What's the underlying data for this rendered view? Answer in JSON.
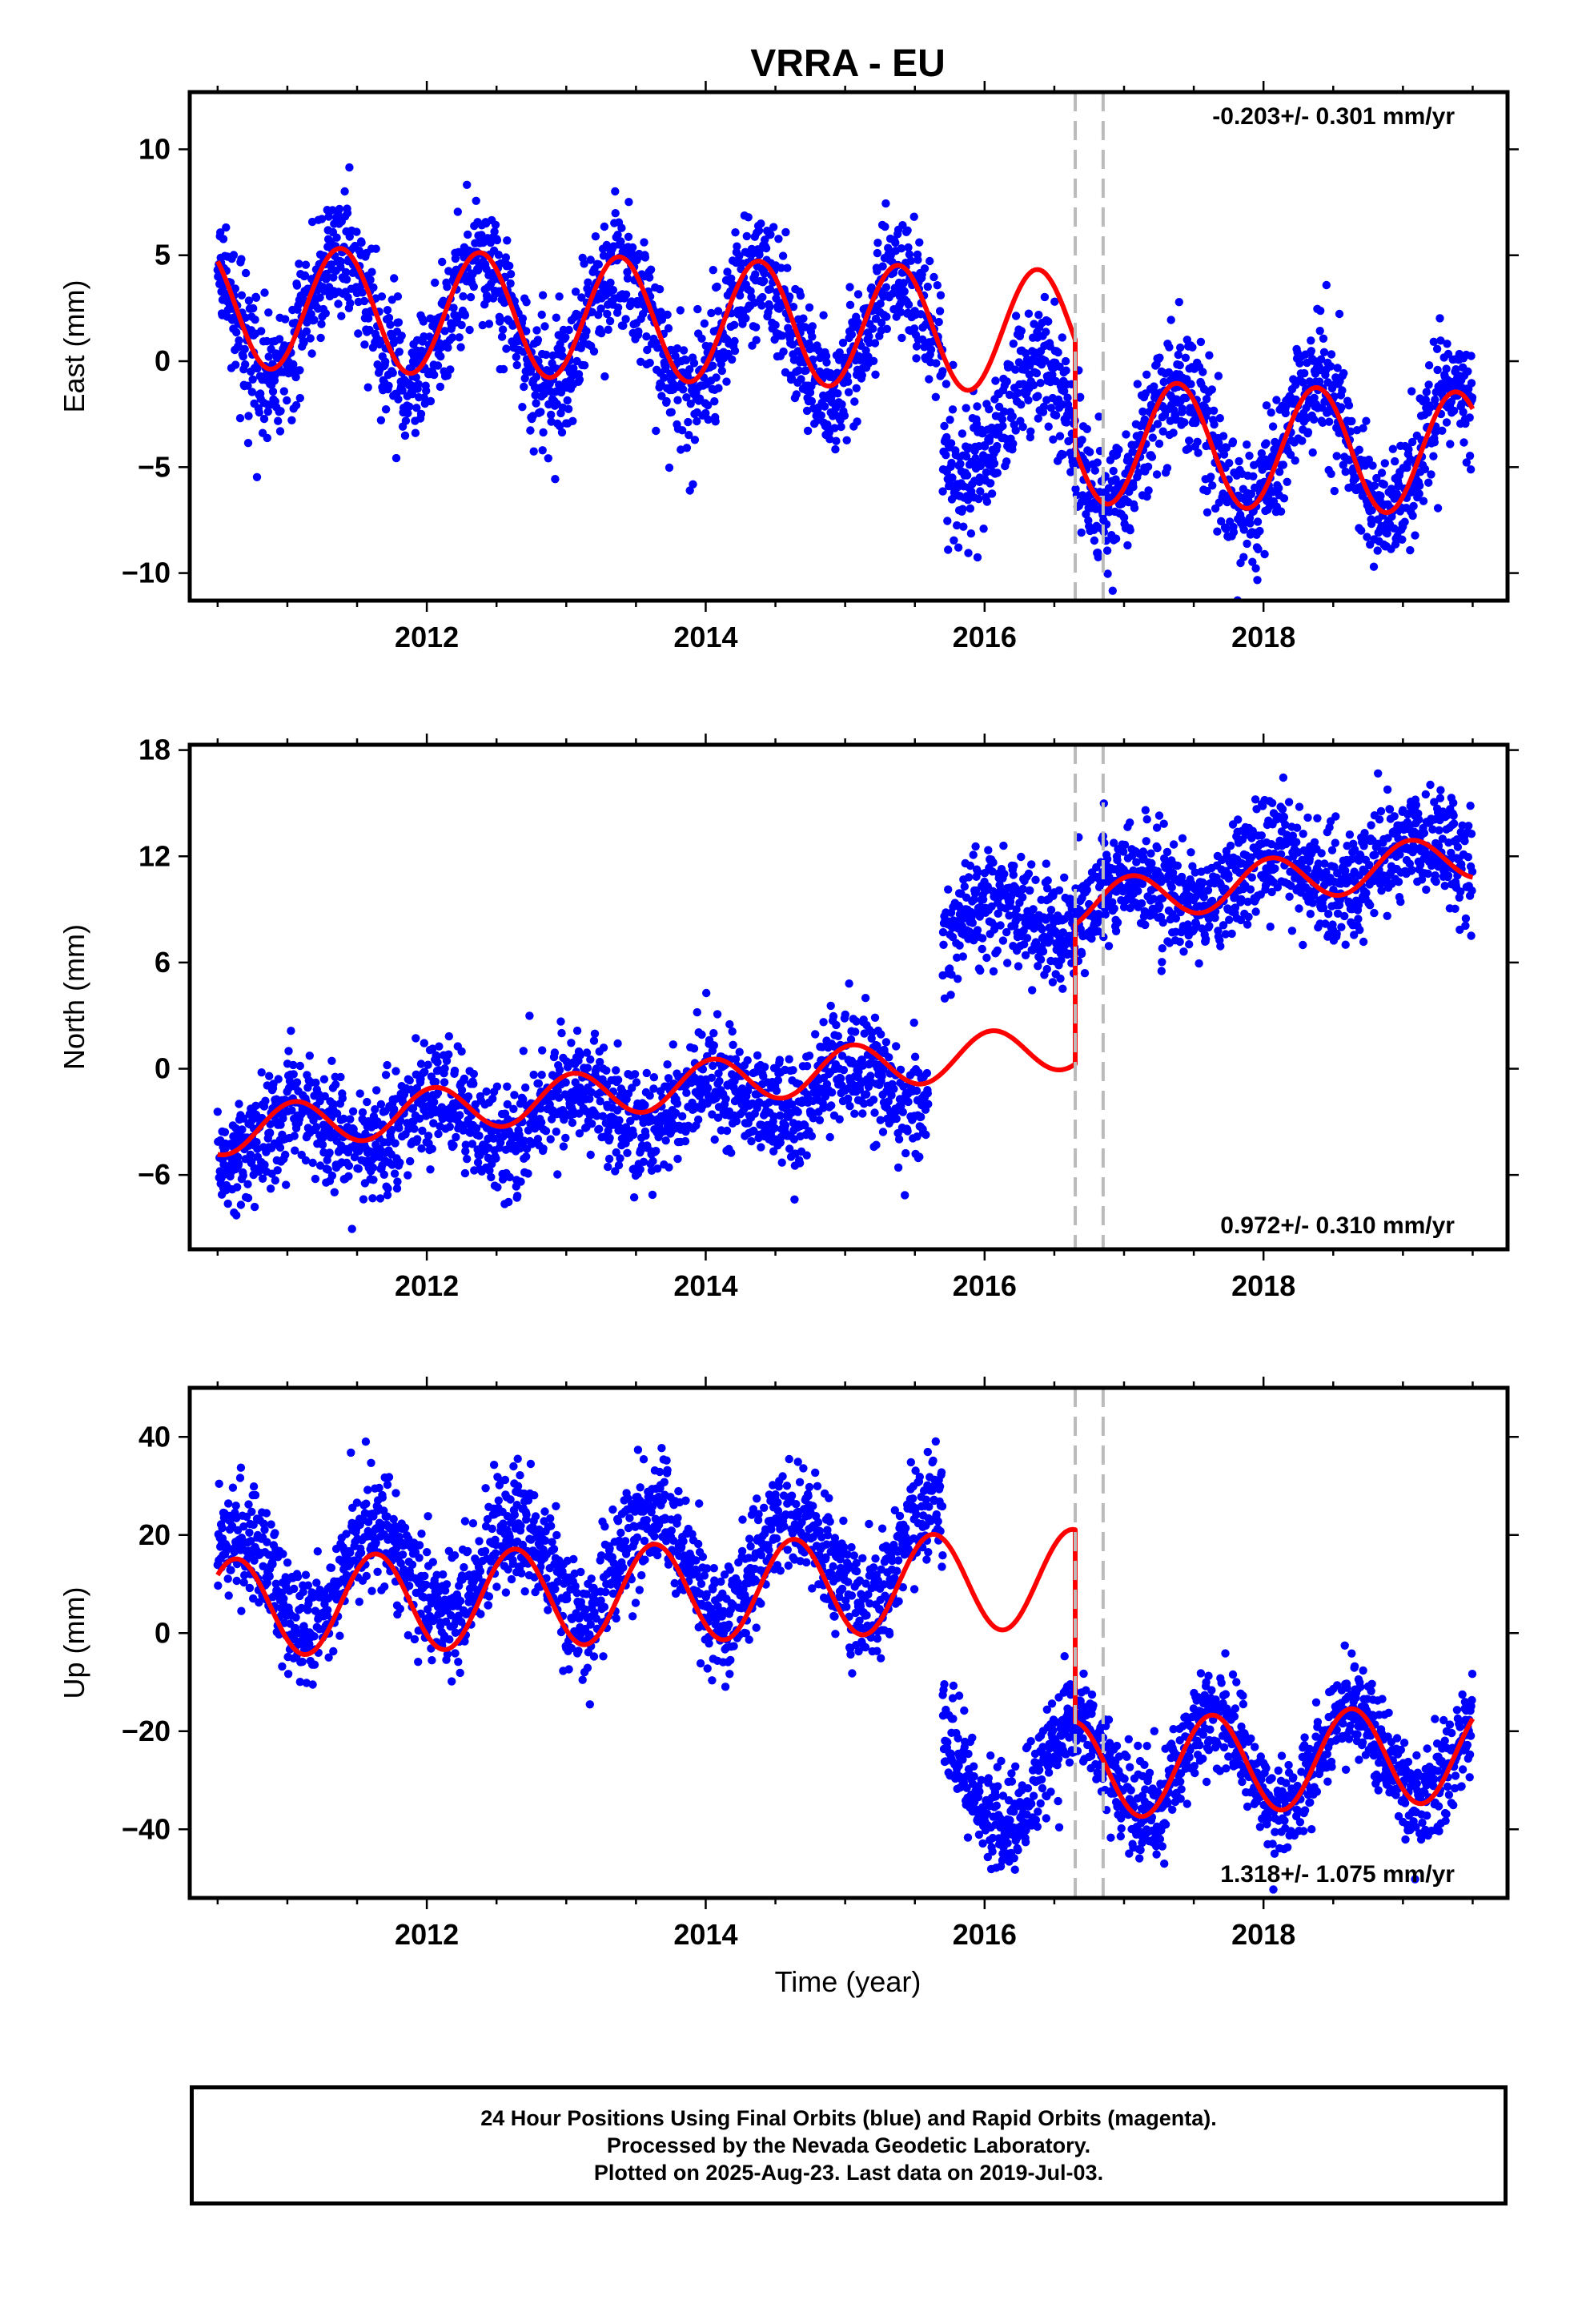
{
  "figure": {
    "title": "VRRA - EU",
    "xlabel": "Time (year)",
    "footer": [
      "24 Hour Positions Using Final Orbits (blue) and Rapid Orbits (magenta).",
      "Processed by the Nevada Geodetic Laboratory.",
      "Plotted on 2025-Aug-23. Last data on 2019-Jul-03."
    ],
    "colors": {
      "data": "#0000ff",
      "model": "#ff0000",
      "events": "#bbbbbb",
      "frame": "#000000"
    }
  },
  "chart_data": [
    {
      "type": "scatter",
      "name": "East",
      "ylabel": "East (mm)",
      "rate_label": "-0.203+/- 0.301 mm/yr",
      "rate_position": "top-right",
      "xlim": [
        2010.3,
        2019.75
      ],
      "ylim": [
        -11.3,
        12.7
      ],
      "x_ticks": [
        2012,
        2014,
        2016,
        2018
      ],
      "y_ticks": [
        10,
        5,
        0,
        -5,
        -10
      ],
      "y_tick_labels": [
        "10",
        "5",
        "0",
        "−5",
        "−10"
      ],
      "event_lines": [
        2016.65,
        2016.85
      ],
      "data_start": 2010.5,
      "data_end": 2019.5,
      "gap": [
        2015.7,
        2015.72
      ],
      "segments": [
        {
          "from": 2010.5,
          "to": 2015.7,
          "offset": 2.2,
          "trend": -0.2,
          "amplitude": 2.9,
          "phase_year": 2011.38,
          "noise": 1.5
        },
        {
          "from": 2015.7,
          "to": 2016.65,
          "offset": -2.8,
          "trend": -0.2,
          "amplitude": 2.9,
          "phase_year": 2011.38,
          "noise": 1.5
        },
        {
          "from": 2016.65,
          "to": 2019.5,
          "offset": -3.8,
          "trend": -0.2,
          "amplitude": 2.9,
          "phase_year": 2011.38,
          "noise": 1.5
        }
      ],
      "model": [
        {
          "from": 2010.5,
          "to": 2016.65,
          "offset": 2.6,
          "trend": -0.2,
          "amplitude": 2.9,
          "phase_year": 2011.38
        },
        {
          "from": 2016.65,
          "to": 2019.5,
          "offset": -3.8,
          "trend": -0.2,
          "amplitude": 2.9,
          "phase_year": 2011.38
        }
      ]
    },
    {
      "type": "scatter",
      "name": "North",
      "ylabel": "North (mm)",
      "rate_label": "0.972+/- 0.310 mm/yr",
      "rate_position": "bottom-right",
      "xlim": [
        2010.3,
        2019.75
      ],
      "ylim": [
        -10.2,
        18.3
      ],
      "x_ticks": [
        2012,
        2014,
        2016,
        2018
      ],
      "y_ticks": [
        18,
        12,
        6,
        0,
        -6
      ],
      "y_tick_labels": [
        "18",
        "12",
        "6",
        "0",
        "−6"
      ],
      "event_lines": [
        2016.65,
        2016.85
      ],
      "data_start": 2010.5,
      "data_end": 2019.5,
      "gap": [
        2015.6,
        2015.7
      ],
      "segments": [
        {
          "from": 2010.5,
          "to": 2015.6,
          "offset": -3.8,
          "trend": 0.55,
          "amplitude": 1.3,
          "phase_year": 2011.05,
          "noise": 1.6
        },
        {
          "from": 2015.7,
          "to": 2016.65,
          "offset": 8.0,
          "trend": 1.2,
          "amplitude": 1.3,
          "phase_year": 2011.05,
          "noise": 1.5
        },
        {
          "from": 2016.65,
          "to": 2019.5,
          "offset": 9.5,
          "trend": 1.0,
          "amplitude": 1.3,
          "phase_year": 2011.05,
          "noise": 1.6
        }
      ],
      "model": [
        {
          "from": 2010.5,
          "to": 2016.65,
          "offset": -3.6,
          "trend": 0.8,
          "amplitude": 1.3,
          "phase_year": 2011.05
        },
        {
          "from": 2016.65,
          "to": 2019.5,
          "offset": 9.2,
          "trend": 1.0,
          "amplitude": 1.3,
          "phase_year": 2011.05
        }
      ]
    },
    {
      "type": "scatter",
      "name": "Up",
      "ylabel": "Up (mm)",
      "rate_label": "1.318+/- 1.075 mm/yr",
      "rate_position": "bottom-right",
      "xlim": [
        2010.3,
        2019.75
      ],
      "ylim": [
        -54,
        50
      ],
      "x_ticks": [
        2012,
        2014,
        2016,
        2018
      ],
      "y_ticks": [
        40,
        20,
        0,
        -20,
        -40
      ],
      "y_tick_labels": [
        "40",
        "20",
        "0",
        "−20",
        "−40"
      ],
      "event_lines": [
        2016.65,
        2016.85
      ],
      "data_start": 2010.5,
      "data_end": 2019.5,
      "gap": [
        2015.7,
        2015.72
      ],
      "segments": [
        {
          "from": 2010.5,
          "to": 2015.7,
          "offset": 10.5,
          "trend": 1.0,
          "amplitude": 10.0,
          "phase_year": 2010.63,
          "noise": 6.0
        },
        {
          "from": 2015.7,
          "to": 2016.65,
          "offset": -30.0,
          "trend": 1.0,
          "amplitude": 10.0,
          "phase_year": 2010.63,
          "noise": 5.5
        },
        {
          "from": 2016.65,
          "to": 2019.5,
          "offset": -28.0,
          "trend": 1.3,
          "amplitude": 10.0,
          "phase_year": 2010.63,
          "noise": 5.0
        }
      ],
      "model": [
        {
          "from": 2010.5,
          "to": 2016.65,
          "offset": 5.0,
          "trend": 1.0,
          "amplitude": 10.0,
          "phase_year": 2010.63
        },
        {
          "from": 2016.65,
          "to": 2019.5,
          "offset": -28.0,
          "trend": 1.3,
          "amplitude": 10.0,
          "phase_year": 2010.63
        }
      ]
    }
  ]
}
